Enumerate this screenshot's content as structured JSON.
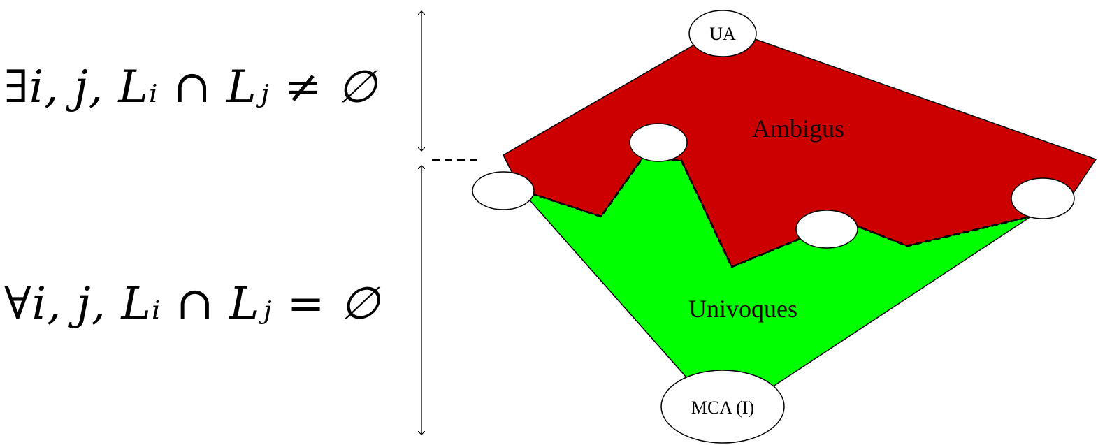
{
  "formulas": {
    "top": "∃i, j, Lᵢ ∩ Lⱼ ≠ ∅",
    "bottom": "∀i, j, Lᵢ ∩ Lⱼ = ∅"
  },
  "regions": {
    "ambiguous_label": "Ambigus",
    "unambiguous_label": "Univoques"
  },
  "nodes": {
    "top_label": "UA",
    "bottom_label": "MCA (I)"
  },
  "colors": {
    "ambiguous": "#cc0000",
    "unambiguous": "#00ff00",
    "outline": "#000000",
    "node_fill": "#ffffff"
  }
}
